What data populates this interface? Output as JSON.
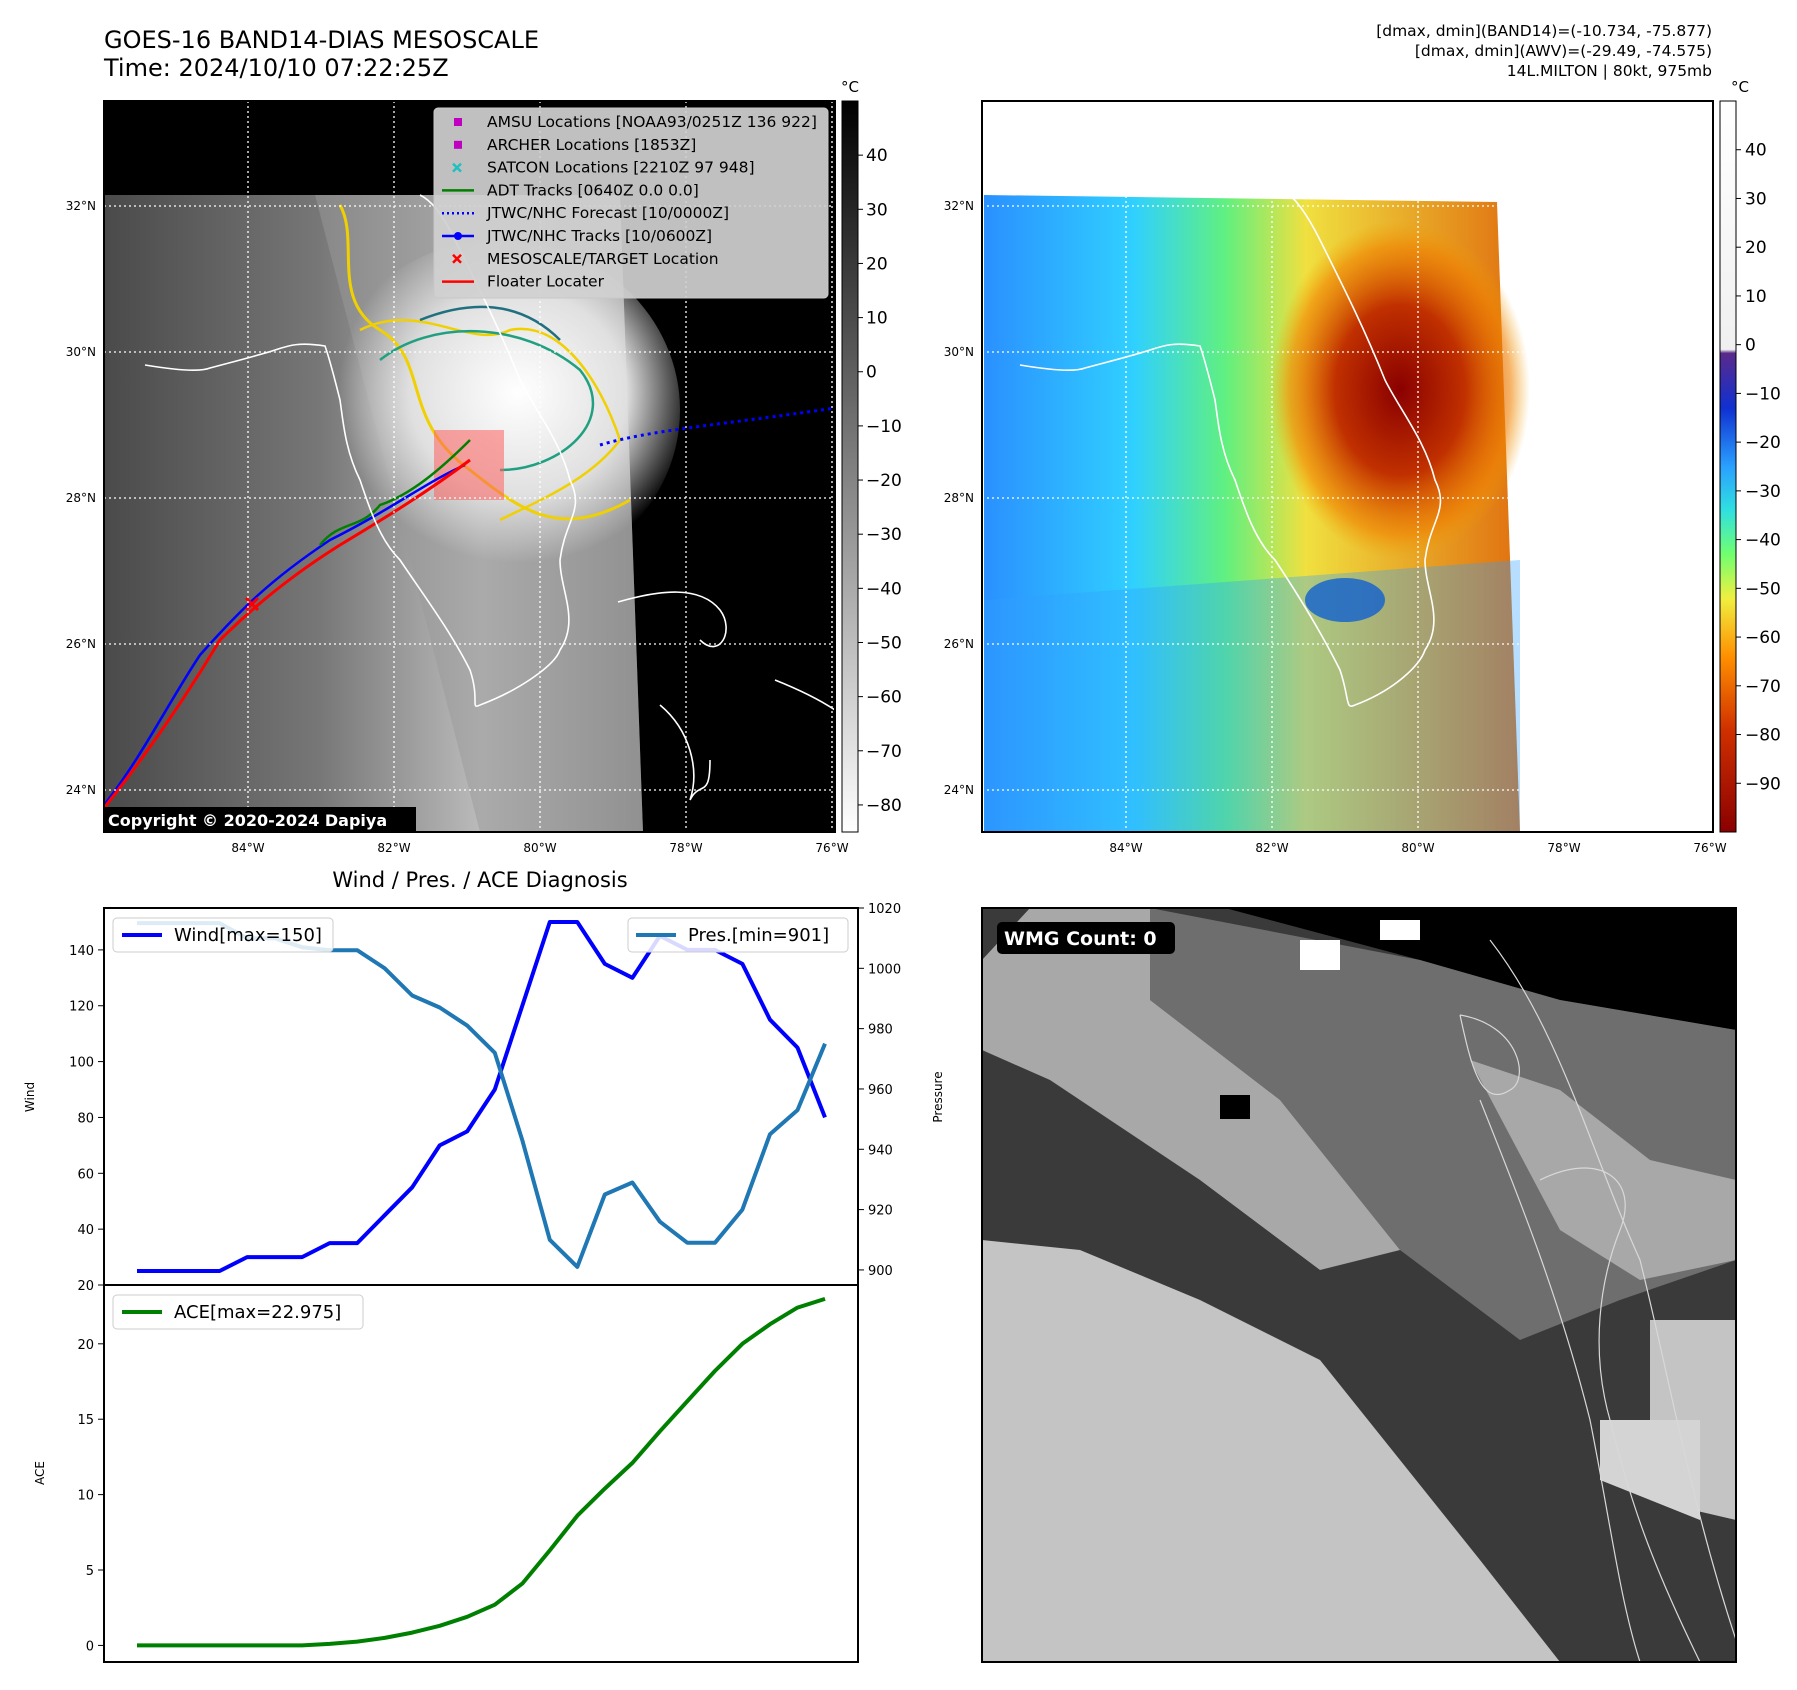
{
  "header": {
    "title_line1": "GOES-16 BAND14-DIAS MESOSCALE",
    "title_line2": "Time: 2024/10/10 07:22:25Z",
    "stat_line1": "[dmax, dmin](BAND14)=(-10.734, -75.877)",
    "stat_line2": "[dmax, dmin](AWV)=(-29.49, -74.575)",
    "stat_line3": "14L.MILTON | 80kt, 975mb"
  },
  "maps": {
    "lat_labels": [
      "32°N",
      "30°N",
      "28°N",
      "26°N",
      "24°N"
    ],
    "lon_labels": [
      "84°W",
      "82°W",
      "80°W",
      "78°W",
      "76°W"
    ],
    "copyright": "Copyright © 2020-2024 Dapiya",
    "legend": [
      {
        "label": "AMSU Locations [NOAA93/0251Z 136 922]",
        "marker": "square",
        "color": "#c000c0"
      },
      {
        "label": "ARCHER Locations [1853Z]",
        "marker": "square",
        "color": "#c000c0"
      },
      {
        "label": "SATCON Locations [2210Z 97 948]",
        "marker": "x",
        "color": "#20c0c0"
      },
      {
        "label": "ADT Tracks [0640Z 0.0 0.0]",
        "marker": "line",
        "color": "#008000"
      },
      {
        "label": "JTWC/NHC Forecast [10/0000Z]",
        "marker": "dotted",
        "color": "#0000ff"
      },
      {
        "label": "JTWC/NHC Tracks [10/0600Z]",
        "marker": "line-dot",
        "color": "#0000ff"
      },
      {
        "label": "MESOSCALE/TARGET Location",
        "marker": "x",
        "color": "#ff0000"
      },
      {
        "label": "Floater Locater",
        "marker": "line",
        "color": "#ff0000"
      }
    ],
    "cbar_gray": {
      "unit": "°C",
      "ticks": [
        "40",
        "30",
        "20",
        "10",
        "0",
        "−10",
        "−20",
        "−30",
        "−40",
        "−50",
        "−60",
        "−70",
        "−80"
      ]
    },
    "cbar_color": {
      "unit": "°C",
      "ticks": [
        "40",
        "30",
        "20",
        "10",
        "0",
        "−10",
        "−20",
        "−30",
        "−40",
        "−50",
        "−60",
        "−70",
        "−80",
        "−90"
      ]
    },
    "wmg_label": "WMG Count: 0"
  },
  "chart_data": [
    {
      "type": "line",
      "title": "Wind / Pres. / ACE Diagnosis",
      "ylabel": "Wind",
      "y2label": "Pressure",
      "ylim": [
        20,
        155
      ],
      "y2lim": [
        895,
        1020
      ],
      "yticks": [
        20,
        40,
        60,
        80,
        100,
        120,
        140
      ],
      "y2ticks": [
        900,
        920,
        940,
        960,
        980,
        1000,
        1020
      ],
      "series": [
        {
          "name": "Wind[max=150]",
          "color": "#0000ff",
          "axis": "left",
          "values": [
            25,
            25,
            25,
            25,
            30,
            30,
            30,
            35,
            35,
            45,
            55,
            70,
            75,
            90,
            120,
            150,
            150,
            135,
            130,
            145,
            140,
            140,
            135,
            115,
            105,
            80
          ]
        },
        {
          "name": "Pres.[min=901]",
          "color": "#1f77b4",
          "axis": "right",
          "values": [
            1015,
            1015,
            1015,
            1015,
            1010,
            1010,
            1007,
            1006,
            1006,
            1000,
            991,
            987,
            981,
            972,
            943,
            910,
            901,
            925,
            929,
            916,
            909,
            909,
            920,
            945,
            953,
            975
          ]
        }
      ]
    },
    {
      "type": "line",
      "ylabel": "ACE",
      "ylim": [
        -1.1,
        23.9
      ],
      "yticks": [
        0,
        5,
        10,
        15,
        20
      ],
      "series": [
        {
          "name": "ACE[max=22.975]",
          "color": "#008000",
          "values": [
            0,
            0,
            0,
            0,
            0,
            0,
            0,
            0.1,
            0.25,
            0.5,
            0.85,
            1.3,
            1.9,
            2.7,
            4.1,
            6.3,
            8.6,
            10.4,
            12.1,
            14.2,
            16.2,
            18.2,
            20.0,
            21.3,
            22.4,
            22.975
          ]
        }
      ]
    }
  ]
}
